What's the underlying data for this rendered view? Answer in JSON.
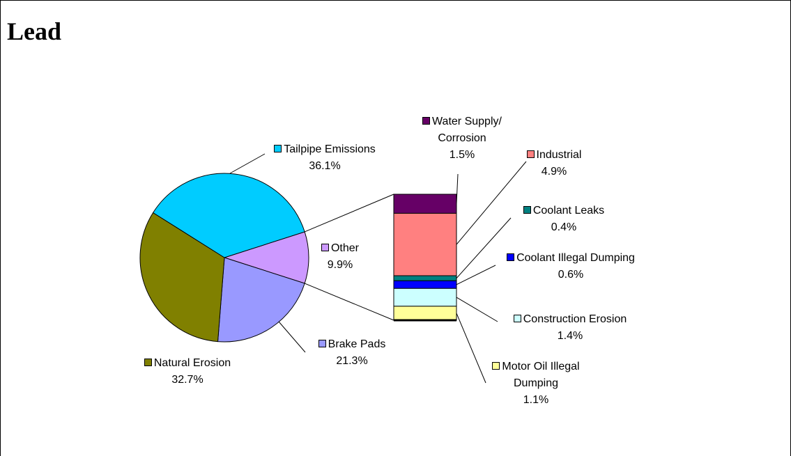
{
  "chart_data": {
    "type": "pie",
    "title": "Lead",
    "categories": [
      "Other",
      "Brake Pads",
      "Natural Erosion",
      "Tailpipe Emissions"
    ],
    "values": [
      9.9,
      21.3,
      32.7,
      36.1
    ],
    "value_labels": [
      "9.9%",
      "21.3%",
      "32.7%",
      "36.1%"
    ],
    "colors": [
      "#CC99FF",
      "#9999FF",
      "#808000",
      "#00CCFF"
    ],
    "breakout": {
      "type": "bar",
      "categories": [
        "Water Supply/ Corrosion",
        "Industrial",
        "Coolant Leaks",
        "Coolant Illegal Dumping",
        "Construction Erosion",
        "Motor Oil Illegal Dumping"
      ],
      "values": [
        1.5,
        4.9,
        0.4,
        0.6,
        1.4,
        1.1
      ],
      "value_labels": [
        "1.5%",
        "4.9%",
        "0.4%",
        "0.6%",
        "1.4%",
        "1.1%"
      ],
      "colors": [
        "#660066",
        "#FF8080",
        "#008080",
        "#0000FF",
        "#CCFFFF",
        "#FFFF99"
      ]
    }
  }
}
